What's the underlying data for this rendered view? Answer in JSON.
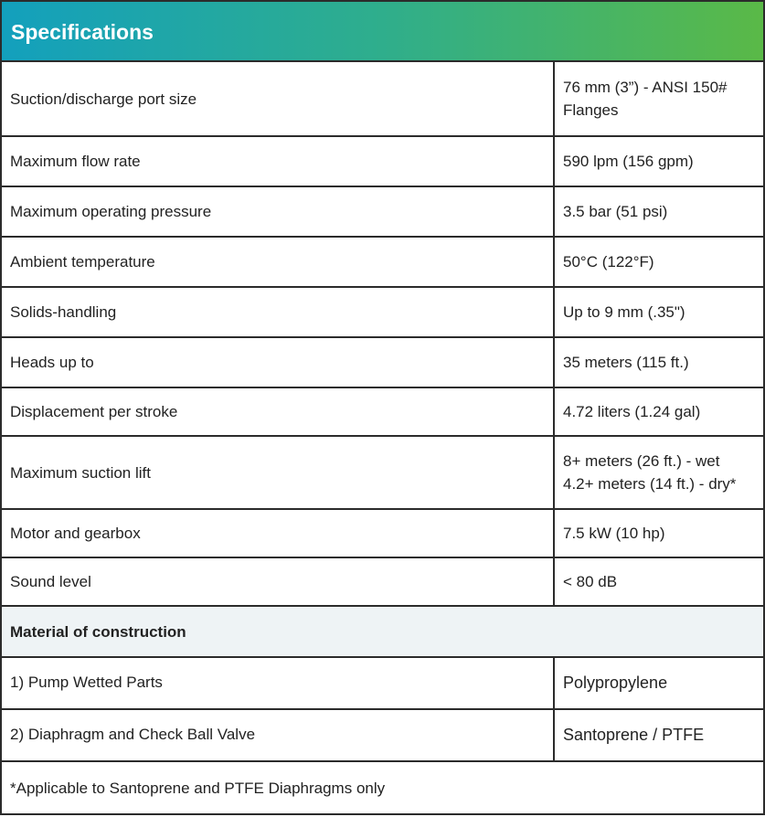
{
  "header": {
    "title": "Specifications"
  },
  "table": {
    "rows": [
      [
        "Suction/discharge port size",
        [
          "76 mm (3”) - ANSI 150#",
          "Flanges"
        ]
      ],
      [
        "Maximum flow rate",
        [
          "590 lpm (156 gpm)"
        ]
      ],
      [
        "Maximum operating pressure",
        [
          "3.5 bar (51 psi)"
        ]
      ],
      [
        "Ambient temperature",
        [
          "50°C (122°F)"
        ]
      ],
      [
        "Solids-handling",
        [
          "Up to 9 mm (.35\")"
        ]
      ],
      [
        "Heads up to",
        [
          "35 meters (115 ft.)"
        ]
      ],
      [
        "Displacement per stroke",
        [
          "4.72 liters (1.24 gal)"
        ]
      ],
      [
        "Maximum suction lift",
        [
          "8+ meters (26 ft.) - wet",
          "4.2+ meters (14 ft.) - dry*"
        ]
      ],
      [
        "Motor and gearbox",
        [
          "7.5 kW (10 hp)"
        ]
      ],
      [
        "Sound level",
        [
          "< 80 dB"
        ]
      ]
    ]
  },
  "section": {
    "title": "Material of construction",
    "rows": [
      [
        "1) Pump Wetted Parts",
        "Polypropylene"
      ],
      [
        "2) Diaphragm and Check Ball Valve",
        "Santoprene / PTFE"
      ]
    ]
  },
  "footnote": "*Applicable to Santoprene and PTFE Diaphragms only"
}
